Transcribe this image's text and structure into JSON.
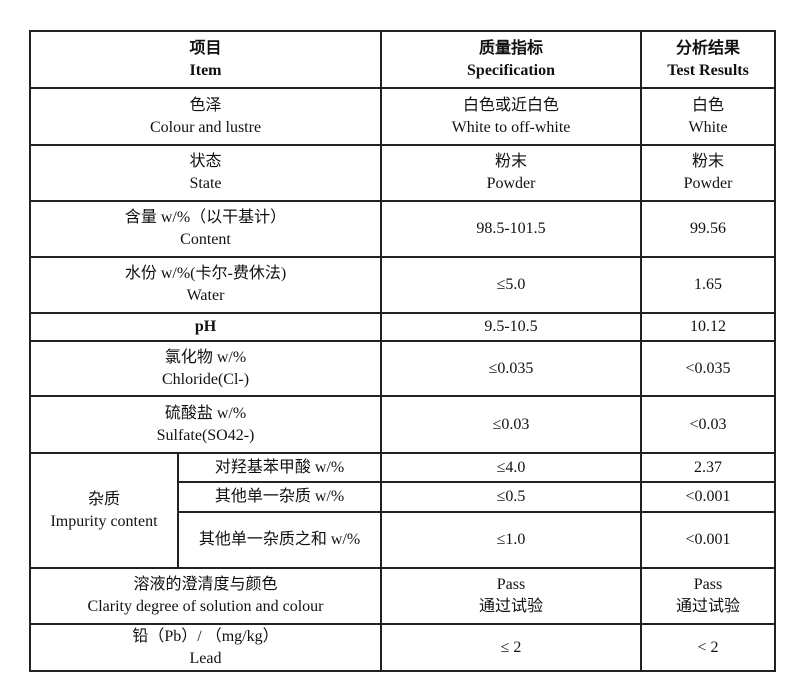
{
  "header": {
    "item": {
      "zh": "项目",
      "en": "Item"
    },
    "specification": {
      "zh": "质量指标",
      "en": "Specification"
    },
    "results": {
      "zh": "分析结果",
      "en": "Test Results"
    }
  },
  "rows": [
    {
      "item_zh": "色泽",
      "item_en": "Colour and lustre",
      "spec_zh": "白色或近白色",
      "spec_en": "White to off-white",
      "result_zh": "白色",
      "result_en": "White"
    },
    {
      "item_zh": "状态",
      "item_en": "State",
      "spec_zh": "粉末",
      "spec_en": "Powder",
      "result_zh": "粉末",
      "result_en": "Powder"
    },
    {
      "item_zh": "含量 w/%（以干基计）",
      "item_en": "Content",
      "spec": "98.5-101.5",
      "result": "99.56"
    },
    {
      "item_zh": "水份 w/%(卡尔-费休法)",
      "item_en": "Water",
      "spec": "≤5.0",
      "result": "1.65"
    },
    {
      "item_en": "pH",
      "spec": "9.5-10.5",
      "result": "10.12"
    },
    {
      "item_zh": "氯化物 w/%",
      "item_en": "Chloride(Cl-)",
      "spec": "≤0.035",
      "result": "<0.035"
    },
    {
      "item_zh": "硫酸盐 w/%",
      "item_en": "Sulfate(SO42-)",
      "spec": "≤0.03",
      "result": "<0.03"
    }
  ],
  "impurity": {
    "label_zh": "杂质",
    "label_en": "Impurity content",
    "subrows": [
      {
        "item": "对羟基苯甲酸 w/%",
        "spec": "≤4.0",
        "result": "2.37"
      },
      {
        "item": "其他单一杂质 w/%",
        "spec": "≤0.5",
        "result": "<0.001"
      },
      {
        "item": "其他单一杂质之和 w/%",
        "spec": "≤1.0",
        "result": "<0.001"
      }
    ]
  },
  "clarity": {
    "item_zh": "溶液的澄清度与颜色",
    "item_en": "Clarity degree of solution and colour",
    "spec_en": "Pass",
    "spec_zh": "通过试验",
    "result_en": "Pass",
    "result_zh": "通过试验"
  },
  "lead": {
    "item_zh": "铅（Pb）/ （mg/kg）",
    "item_en": "Lead",
    "spec": "≤ 2",
    "result": "< 2"
  }
}
